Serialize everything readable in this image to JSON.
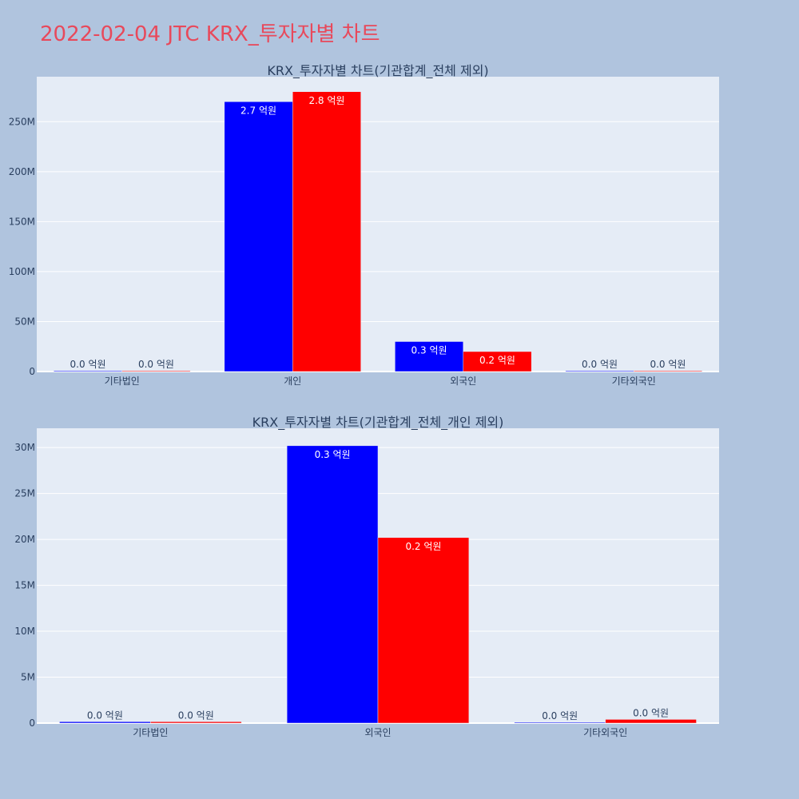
{
  "page_title": "2022-02-04 JTC KRX_투자자별 차트",
  "colors": {
    "background": "#b0c4de",
    "plot_bg": "#e5ecf6",
    "title": "#e8495b",
    "series_1": "#0000ff",
    "series_2": "#ff0000"
  },
  "chart_data": [
    {
      "type": "bar",
      "title": "KRX_투자자별 차트(기관합계_전체 제외)",
      "categories": [
        "기타법인",
        "개인",
        "외국인",
        "기타외국인"
      ],
      "series": [
        {
          "color": "#0000ff",
          "values": [
            300000,
            270000000,
            30000000,
            50000
          ],
          "labels": [
            "0.0 억원",
            "2.7 억원",
            "0.3 억원",
            "0.0 억원"
          ]
        },
        {
          "color": "#ff0000",
          "values": [
            200000,
            280000000,
            20000000,
            400000
          ],
          "labels": [
            "0.0 억원",
            "2.8 억원",
            "0.2 억원",
            "0.0 억원"
          ]
        }
      ],
      "ylim": [
        0,
        295000000
      ],
      "yticks": [
        0,
        50000000,
        100000000,
        150000000,
        200000000,
        250000000
      ],
      "ytick_labels": [
        "0",
        "50M",
        "100M",
        "150M",
        "200M",
        "250M"
      ],
      "grid": true
    },
    {
      "type": "bar",
      "title": "KRX_투자자별 차트(기관합계_전체_개인 제외)",
      "categories": [
        "기타법인",
        "외국인",
        "기타외국인"
      ],
      "series": [
        {
          "color": "#0000ff",
          "values": [
            150000,
            30200000,
            50000
          ],
          "labels": [
            "0.0 억원",
            "0.3 억원",
            "0.0 억원"
          ]
        },
        {
          "color": "#ff0000",
          "values": [
            150000,
            20200000,
            400000
          ],
          "labels": [
            "0.0 억원",
            "0.2 억원",
            "0.0 억원"
          ]
        }
      ],
      "ylim": [
        0,
        32100000
      ],
      "yticks": [
        0,
        5000000,
        10000000,
        15000000,
        20000000,
        25000000,
        30000000
      ],
      "ytick_labels": [
        "0",
        "5M",
        "10M",
        "15M",
        "20M",
        "25M",
        "30M"
      ],
      "grid": true
    }
  ]
}
